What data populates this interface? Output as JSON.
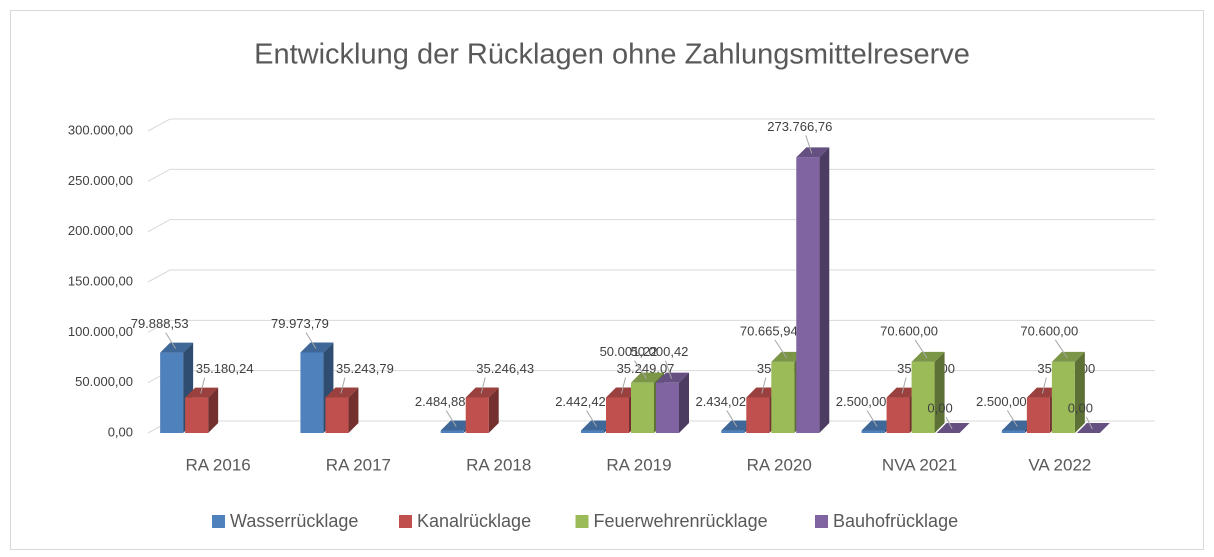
{
  "chart_data": {
    "type": "bar3d",
    "title": "Entwicklung der Rücklagen ohne Zahlungsmittelreserve",
    "categories": [
      "RA 2016",
      "RA 2017",
      "RA 2018",
      "RA 2019",
      "RA 2020",
      "NVA 2021",
      "VA 2022"
    ],
    "series": [
      {
        "name": "Wasserrücklage",
        "color": "#4f81bd",
        "values": [
          79888.53,
          79973.79,
          2484.88,
          2442.42,
          2434.02,
          2500.0,
          2500.0
        ],
        "value_labels": [
          "79.888,53",
          "79.973,79",
          "2.484,88",
          "2.442,42",
          "2.434,02",
          "2.500,00",
          "2.500,00"
        ]
      },
      {
        "name": "Kanalrücklage",
        "color": "#c0504d",
        "values": [
          35180.24,
          35243.79,
          35246.43,
          35249.07,
          35249.17,
          35200.0,
          35200.0
        ],
        "value_labels": [
          "35.180,24",
          "35.243,79",
          "35.246,43",
          "35.249,07",
          "35.249,17",
          "35.200,00",
          "35.200,00"
        ]
      },
      {
        "name": "Feuerwehrenrücklage",
        "color": "#9bbb59",
        "values": [
          null,
          null,
          null,
          50001.22,
          70665.94,
          70600.0,
          70600.0
        ],
        "value_labels": [
          null,
          null,
          null,
          "50.001,22",
          "70.665,94",
          "70.600,00",
          "70.600,00"
        ]
      },
      {
        "name": "Bauhofrücklage",
        "color": "#8064a2",
        "values": [
          null,
          null,
          null,
          50000.42,
          273766.76,
          0.0,
          0.0
        ],
        "value_labels": [
          null,
          null,
          null,
          "50.000,42",
          "273.766,76",
          "0,00",
          "0,00"
        ]
      }
    ],
    "ylim": [
      0,
      300000
    ],
    "yticks": [
      {
        "value": 0,
        "label": "0,00"
      },
      {
        "value": 50000,
        "label": "50.000,00"
      },
      {
        "value": 100000,
        "label": "100.000,00"
      },
      {
        "value": 150000,
        "label": "150.000,00"
      },
      {
        "value": 200000,
        "label": "200.000,00"
      },
      {
        "value": 250000,
        "label": "250.000,00"
      },
      {
        "value": 300000,
        "label": "300.000,00"
      }
    ],
    "grid": true,
    "legend": "bottom"
  }
}
